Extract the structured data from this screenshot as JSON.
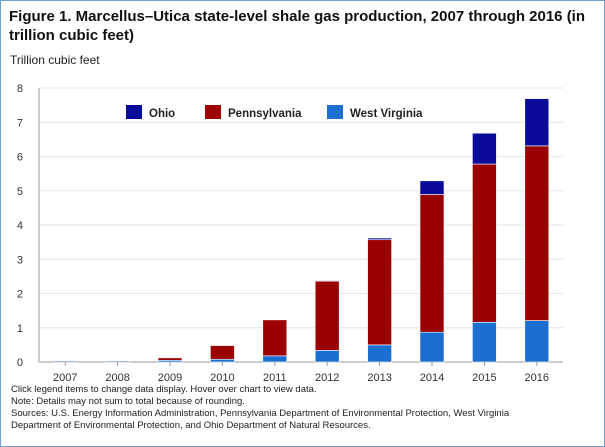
{
  "title": "Figure 1. Marcellus–Utica state-level shale gas production, 2007 through 2016 (in trillion cubic feet)",
  "notes": [
    "Click legend items to change data display. Hover over chart to view data.",
    "Note: Details may not sum to total because of rounding.",
    "Sources: U.S. Energy Information Administration, Pennsylvania Department of Environmental Protection, West Virginia",
    "Department of Environmental Protection, and Ohio Department of Natural Resources."
  ],
  "colors": {
    "ohio": "#0b0b99",
    "pennsylvania": "#9b0000",
    "west_virginia": "#1a6fd1",
    "grid": "#e6e6e6",
    "axis": "#999999"
  },
  "chart_data": {
    "type": "bar",
    "stacked": true,
    "title": "Figure 1. Marcellus–Utica state-level shale gas production, 2007 through 2016 (in trillion cubic feet)",
    "xlabel": "",
    "ylabel": "Trillion cubic feet",
    "ylim": [
      0,
      8
    ],
    "yticks": [
      0,
      1,
      2,
      3,
      4,
      5,
      6,
      7,
      8
    ],
    "grid": true,
    "legend_position": "top",
    "categories": [
      "2007",
      "2008",
      "2009",
      "2010",
      "2011",
      "2012",
      "2013",
      "2014",
      "2015",
      "2016"
    ],
    "series": [
      {
        "name": "West Virginia",
        "color": "#1a6fd1",
        "values": [
          0.03,
          0.03,
          0.05,
          0.08,
          0.18,
          0.34,
          0.5,
          0.87,
          1.16,
          1.21
        ]
      },
      {
        "name": "Pennsylvania",
        "color": "#9b0000",
        "values": [
          0.0,
          0.0,
          0.07,
          0.4,
          1.05,
          2.02,
          3.07,
          4.02,
          4.62,
          5.1
        ]
      },
      {
        "name": "Ohio",
        "color": "#0b0b99",
        "values": [
          0.0,
          0.0,
          0.0,
          0.0,
          0.0,
          0.02,
          0.05,
          0.4,
          0.9,
          1.38
        ]
      }
    ],
    "legend_order": [
      "Ohio",
      "Pennsylvania",
      "West Virginia"
    ]
  }
}
